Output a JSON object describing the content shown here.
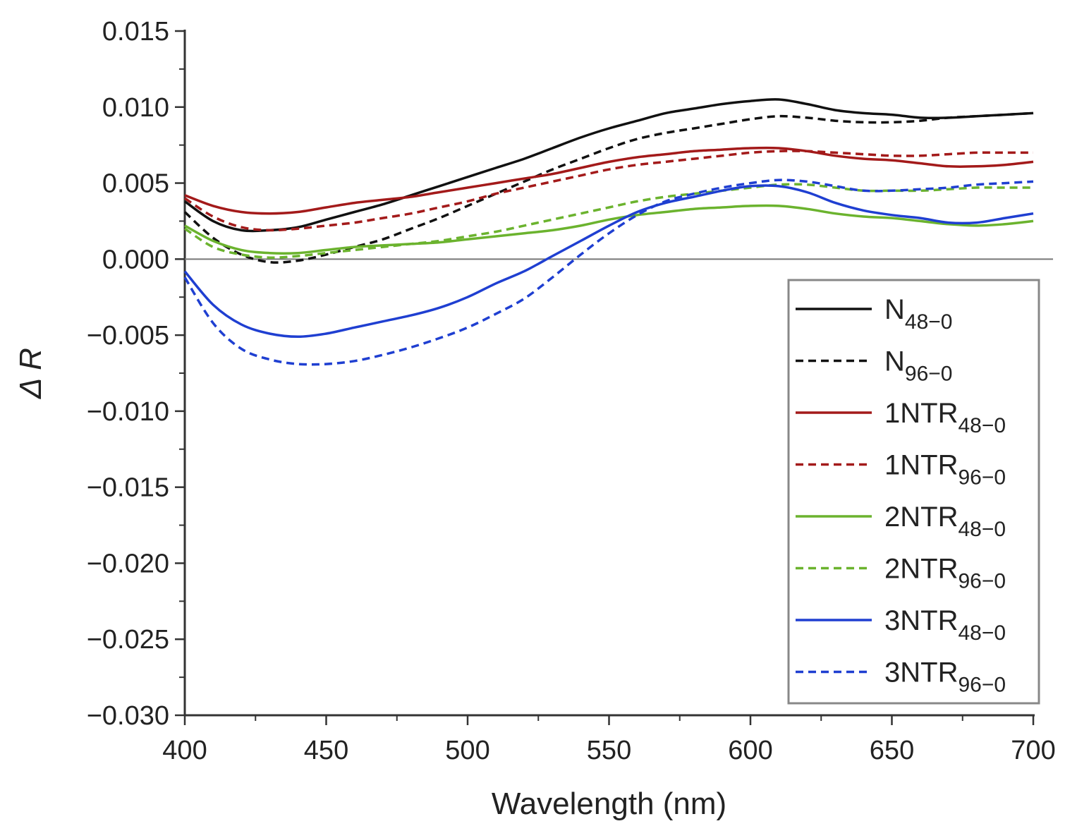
{
  "chart_data": {
    "type": "line",
    "title": "",
    "xlabel": "Wavelength (nm)",
    "ylabel": "Δ R",
    "xlim": [
      400,
      700
    ],
    "ylim": [
      -0.03,
      0.015
    ],
    "x_ticks": [
      400,
      450,
      500,
      550,
      600,
      650,
      700
    ],
    "x_tick_labels": [
      "400",
      "450",
      "500",
      "550",
      "600",
      "650",
      "700"
    ],
    "y_ticks": [
      0.015,
      0.01,
      0.005,
      0.0,
      -0.005,
      -0.01,
      -0.015,
      -0.02,
      -0.025,
      -0.03
    ],
    "y_tick_labels": [
      "0.015",
      "0.010",
      "0.005",
      "0.000",
      "−0.005",
      "−0.010",
      "−0.015",
      "−0.020",
      "−0.025",
      "−0.030"
    ],
    "zero_line": true,
    "grid": false,
    "legend_position": "center-right",
    "x": [
      400,
      410,
      420,
      430,
      440,
      450,
      460,
      470,
      480,
      490,
      500,
      510,
      520,
      530,
      540,
      550,
      560,
      570,
      580,
      590,
      600,
      610,
      620,
      630,
      640,
      650,
      660,
      670,
      680,
      690,
      700
    ],
    "series": [
      {
        "name": "N",
        "subscript": "48−0",
        "color": "#111111",
        "style": "solid",
        "values": [
          0.0038,
          0.0025,
          0.0019,
          0.0019,
          0.0021,
          0.0026,
          0.0031,
          0.0036,
          0.0042,
          0.0048,
          0.0054,
          0.006,
          0.0066,
          0.0073,
          0.008,
          0.0086,
          0.0091,
          0.0096,
          0.0099,
          0.0102,
          0.0104,
          0.0105,
          0.0102,
          0.0098,
          0.0096,
          0.0095,
          0.0093,
          0.0093,
          0.0094,
          0.0095,
          0.0096
        ]
      },
      {
        "name": "N",
        "subscript": "96−0",
        "color": "#111111",
        "style": "dashed",
        "values": [
          0.0031,
          0.0014,
          0.0003,
          -0.0002,
          -0.0001,
          0.0003,
          0.0008,
          0.0013,
          0.002,
          0.0027,
          0.0035,
          0.0043,
          0.0051,
          0.0059,
          0.0066,
          0.0073,
          0.0079,
          0.0083,
          0.0086,
          0.0089,
          0.0092,
          0.0094,
          0.0093,
          0.0091,
          0.009,
          0.009,
          0.0091,
          0.0093,
          0.0094,
          0.0095,
          0.0096
        ]
      },
      {
        "name": "1NTR",
        "subscript": "48−0",
        "color": "#a31a1a",
        "style": "solid",
        "values": [
          0.0042,
          0.0035,
          0.0031,
          0.003,
          0.0031,
          0.0034,
          0.0037,
          0.0039,
          0.0041,
          0.0044,
          0.0047,
          0.005,
          0.0053,
          0.0056,
          0.006,
          0.0064,
          0.0067,
          0.0069,
          0.0071,
          0.0072,
          0.0073,
          0.0073,
          0.0071,
          0.0068,
          0.0066,
          0.0065,
          0.0063,
          0.0061,
          0.0061,
          0.0062,
          0.0064
        ]
      },
      {
        "name": "1NTR",
        "subscript": "96−0",
        "color": "#a31a1a",
        "style": "dashed",
        "values": [
          0.004,
          0.0028,
          0.0021,
          0.0019,
          0.002,
          0.0022,
          0.0024,
          0.0027,
          0.003,
          0.0034,
          0.0038,
          0.0043,
          0.0047,
          0.0051,
          0.0055,
          0.0059,
          0.0062,
          0.0064,
          0.0066,
          0.0068,
          0.007,
          0.0071,
          0.0071,
          0.007,
          0.0069,
          0.0068,
          0.0068,
          0.0069,
          0.007,
          0.007,
          0.007
        ]
      },
      {
        "name": "2NTR",
        "subscript": "48−0",
        "color": "#6bb32e",
        "style": "solid",
        "values": [
          0.0022,
          0.0012,
          0.0006,
          0.0004,
          0.0004,
          0.0006,
          0.0008,
          0.0009,
          0.001,
          0.0011,
          0.0013,
          0.0015,
          0.0017,
          0.0019,
          0.0022,
          0.0026,
          0.0029,
          0.0031,
          0.0033,
          0.0034,
          0.0035,
          0.0035,
          0.0033,
          0.003,
          0.0028,
          0.0027,
          0.0025,
          0.0023,
          0.0022,
          0.0023,
          0.0025
        ]
      },
      {
        "name": "2NTR",
        "subscript": "96−0",
        "color": "#6bb32e",
        "style": "dashed",
        "values": [
          0.002,
          0.0008,
          0.0003,
          0.0001,
          0.0002,
          0.0004,
          0.0006,
          0.0008,
          0.001,
          0.0012,
          0.0015,
          0.0018,
          0.0022,
          0.0026,
          0.003,
          0.0034,
          0.0038,
          0.0041,
          0.0043,
          0.0045,
          0.0047,
          0.0049,
          0.0049,
          0.0047,
          0.0045,
          0.0045,
          0.0045,
          0.0046,
          0.0047,
          0.0047,
          0.0047
        ]
      },
      {
        "name": "3NTR",
        "subscript": "48−0",
        "color": "#1f3fd1",
        "style": "solid",
        "values": [
          -0.0008,
          -0.003,
          -0.0043,
          -0.0049,
          -0.0051,
          -0.0049,
          -0.0045,
          -0.0041,
          -0.0037,
          -0.0032,
          -0.0025,
          -0.0016,
          -0.0008,
          0.0002,
          0.0012,
          0.0022,
          0.0031,
          0.0037,
          0.0041,
          0.0045,
          0.0048,
          0.0048,
          0.0044,
          0.0037,
          0.0032,
          0.0029,
          0.0027,
          0.0024,
          0.0024,
          0.0027,
          0.003
        ]
      },
      {
        "name": "3NTR",
        "subscript": "96−0",
        "color": "#1f3fd1",
        "style": "dashed",
        "values": [
          -0.0012,
          -0.0042,
          -0.0059,
          -0.0066,
          -0.0069,
          -0.0069,
          -0.0067,
          -0.0063,
          -0.0058,
          -0.0052,
          -0.0045,
          -0.0036,
          -0.0026,
          -0.0012,
          0.0003,
          0.0017,
          0.0029,
          0.0038,
          0.0043,
          0.0047,
          0.005,
          0.0052,
          0.0051,
          0.0048,
          0.0045,
          0.0045,
          0.0046,
          0.0047,
          0.0049,
          0.005,
          0.0051
        ]
      }
    ]
  }
}
